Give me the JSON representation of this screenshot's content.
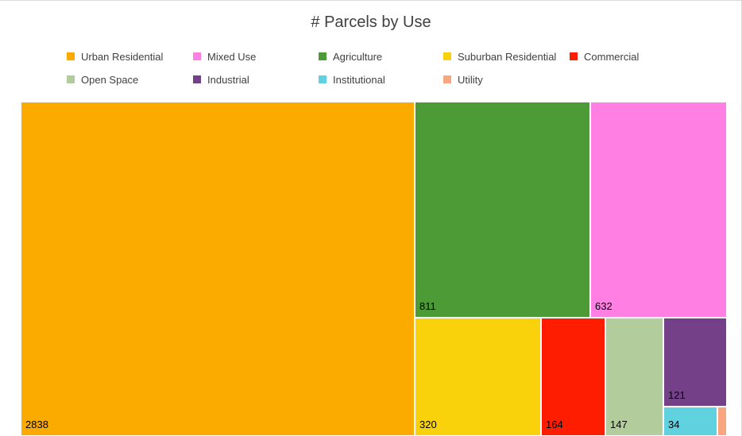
{
  "chart_data": {
    "type": "treemap",
    "title": "# Parcels by Use",
    "legend_position": "top",
    "categories": [
      "Urban Residential",
      "Agriculture",
      "Mixed Use",
      "Suburban Residential",
      "Commercial",
      "Open Space",
      "Industrial",
      "Institutional",
      "Utility"
    ],
    "values": [
      2838,
      811,
      632,
      320,
      164,
      147,
      121,
      34,
      10
    ],
    "labels": [
      "2838",
      "811",
      "632",
      "320",
      "164",
      "147",
      "121",
      "34",
      ""
    ],
    "colors": {
      "Urban Residential": "#fbab00",
      "Mixed Use": "#ff7fe3",
      "Agriculture": "#4d9b37",
      "Suburban Residential": "#f9d20c",
      "Commercial": "#ff1d00",
      "Open Space": "#b2cd9b",
      "Industrial": "#744188",
      "Institutional": "#60d1de",
      "Utility": "#f7a680"
    },
    "legend": [
      "Urban Residential",
      "Mixed Use",
      "Agriculture",
      "Suburban Residential",
      "Commercial",
      "Open Space",
      "Industrial",
      "Institutional",
      "Utility"
    ]
  }
}
